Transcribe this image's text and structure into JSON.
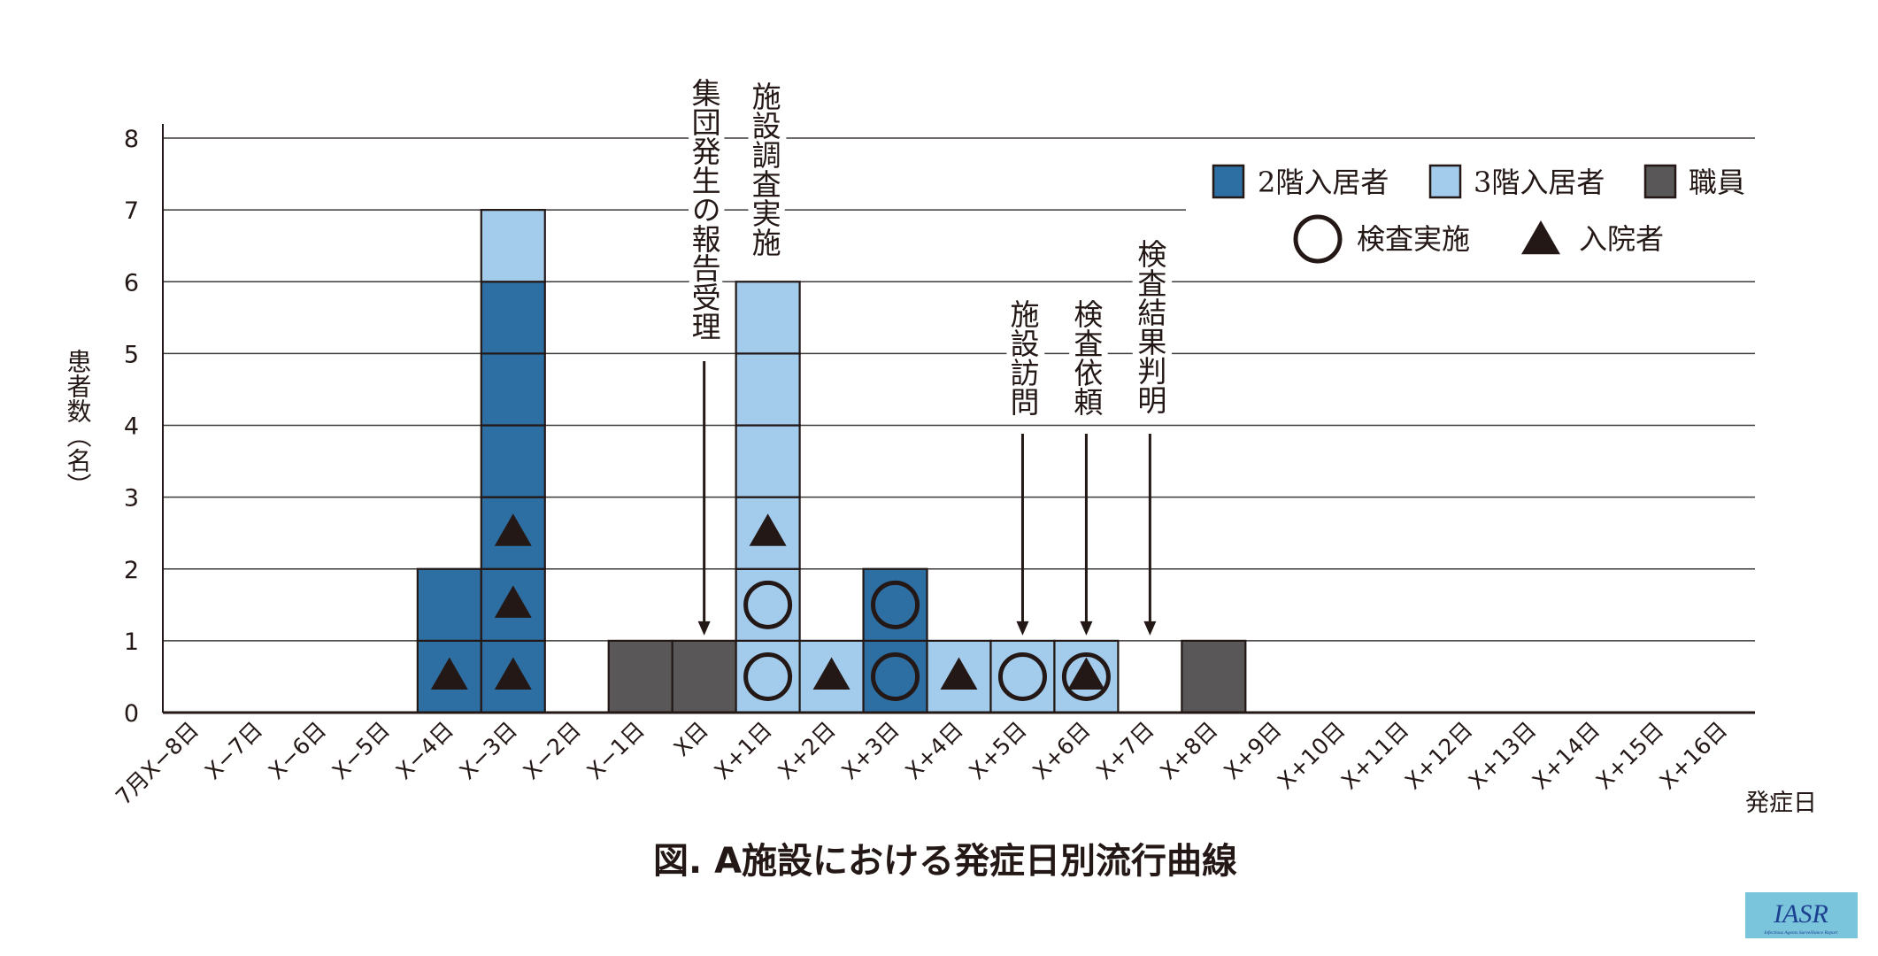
{
  "chart_data": {
    "type": "bar",
    "stacked": true,
    "title": "図. A施設における発症日別流行曲線",
    "xlabel": "発症日",
    "ylabel": "患者数（名）",
    "ylim": [
      0,
      8
    ],
    "yticks": [
      "0",
      "1",
      "2",
      "3",
      "4",
      "5",
      "6",
      "7",
      "8"
    ],
    "grid": true,
    "legend_position": "top-right",
    "categories": [
      "7月X−8日",
      "X−7日",
      "X−6日",
      "X−5日",
      "X−4日",
      "X−3日",
      "X−2日",
      "X−1日",
      "X日",
      "X+1日",
      "X+2日",
      "X+3日",
      "X+4日",
      "X+5日",
      "X+6日",
      "X+7日",
      "X+8日",
      "X+9日",
      "X+10日",
      "X+11日",
      "X+12日",
      "X+13日",
      "X+14日",
      "X+15日",
      "X+16日"
    ],
    "series": [
      {
        "name": "2階入居者",
        "color": "#2e6fa3",
        "values": [
          0,
          0,
          0,
          0,
          2,
          6,
          0,
          0,
          0,
          0,
          0,
          2,
          0,
          0,
          0,
          0,
          0,
          0,
          0,
          0,
          0,
          0,
          0,
          0,
          0
        ]
      },
      {
        "name": "3階入居者",
        "color": "#a3cbeb",
        "values": [
          0,
          0,
          0,
          0,
          0,
          1,
          0,
          0,
          0,
          6,
          1,
          0,
          1,
          1,
          1,
          0,
          0,
          0,
          0,
          0,
          0,
          0,
          0,
          0,
          0
        ]
      },
      {
        "name": "職員",
        "color": "#595757",
        "values": [
          0,
          0,
          0,
          0,
          0,
          0,
          0,
          1,
          1,
          0,
          0,
          0,
          0,
          0,
          0,
          0,
          1,
          0,
          0,
          0,
          0,
          0,
          0,
          0,
          0
        ]
      }
    ],
    "marker_legend": [
      {
        "type": "circle",
        "label": "検査実施"
      },
      {
        "type": "triangle",
        "label": "入院者"
      }
    ],
    "markers": [
      {
        "category": 4,
        "case": 1,
        "type": "triangle"
      },
      {
        "category": 5,
        "case": 1,
        "type": "triangle"
      },
      {
        "category": 5,
        "case": 2,
        "type": "triangle"
      },
      {
        "category": 5,
        "case": 3,
        "type": "triangle"
      },
      {
        "category": 9,
        "case": 1,
        "type": "circle"
      },
      {
        "category": 9,
        "case": 2,
        "type": "circle"
      },
      {
        "category": 9,
        "case": 3,
        "type": "triangle"
      },
      {
        "category": 10,
        "case": 1,
        "type": "triangle"
      },
      {
        "category": 11,
        "case": 1,
        "type": "circle"
      },
      {
        "category": 11,
        "case": 2,
        "type": "circle"
      },
      {
        "category": 12,
        "case": 1,
        "type": "triangle"
      },
      {
        "category": 13,
        "case": 1,
        "type": "circle"
      },
      {
        "category": 14,
        "case": 1,
        "type": "circle"
      },
      {
        "category": 14,
        "case": 1,
        "type": "triangle"
      }
    ],
    "annotations": [
      {
        "text": "集団発生の報告受理",
        "category": 8,
        "arrow": true
      },
      {
        "text": "施設調査実施",
        "category": 9,
        "arrow": false
      },
      {
        "text": "施設訪問",
        "category": 13,
        "arrow": true
      },
      {
        "text": "検査依頼",
        "category": 14,
        "arrow": true
      },
      {
        "text": "検査結果判明",
        "category": 15,
        "arrow": true
      }
    ]
  },
  "logo": {
    "text": "IASR",
    "subtext": "Infectious Agents Surveillance Report"
  }
}
